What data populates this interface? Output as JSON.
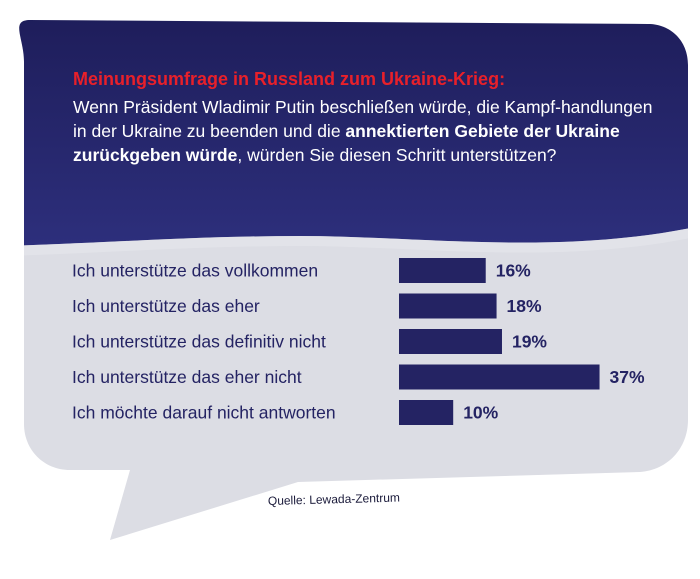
{
  "colors": {
    "navy": "#242363",
    "navy_light": "#34378a",
    "bubble_grey": "#dcdde4",
    "title_red": "#e8202a",
    "bar": "#242363",
    "label": "#242363"
  },
  "header": {
    "title": "Meinungsumfrage in Russland zum Ukraine-Krieg:",
    "question_part1": "Wenn Präsident Wladimir Putin beschließen würde, die Kampf-handlungen in der Ukraine zu beenden und die ",
    "question_bold": "annektierten Gebiete der Ukraine zurückgeben würde",
    "question_part2": ", würden Sie diesen Schritt unterstützen?"
  },
  "chart_data": {
    "type": "bar",
    "orientation": "horizontal",
    "categories": [
      "Ich unterstütze das vollkommen",
      "Ich unterstütze das eher",
      "Ich unterstütze das definitiv nicht",
      "Ich unterstütze das eher nicht",
      "Ich möchte darauf nicht antworten"
    ],
    "values": [
      16,
      18,
      19,
      37,
      10
    ],
    "value_labels": [
      "16%",
      "18%",
      "19%",
      "37%",
      "10%"
    ],
    "unit": "%",
    "grid": false,
    "legend": "none"
  },
  "footer": {
    "source": "Quelle: Lewada-Zentrum"
  }
}
